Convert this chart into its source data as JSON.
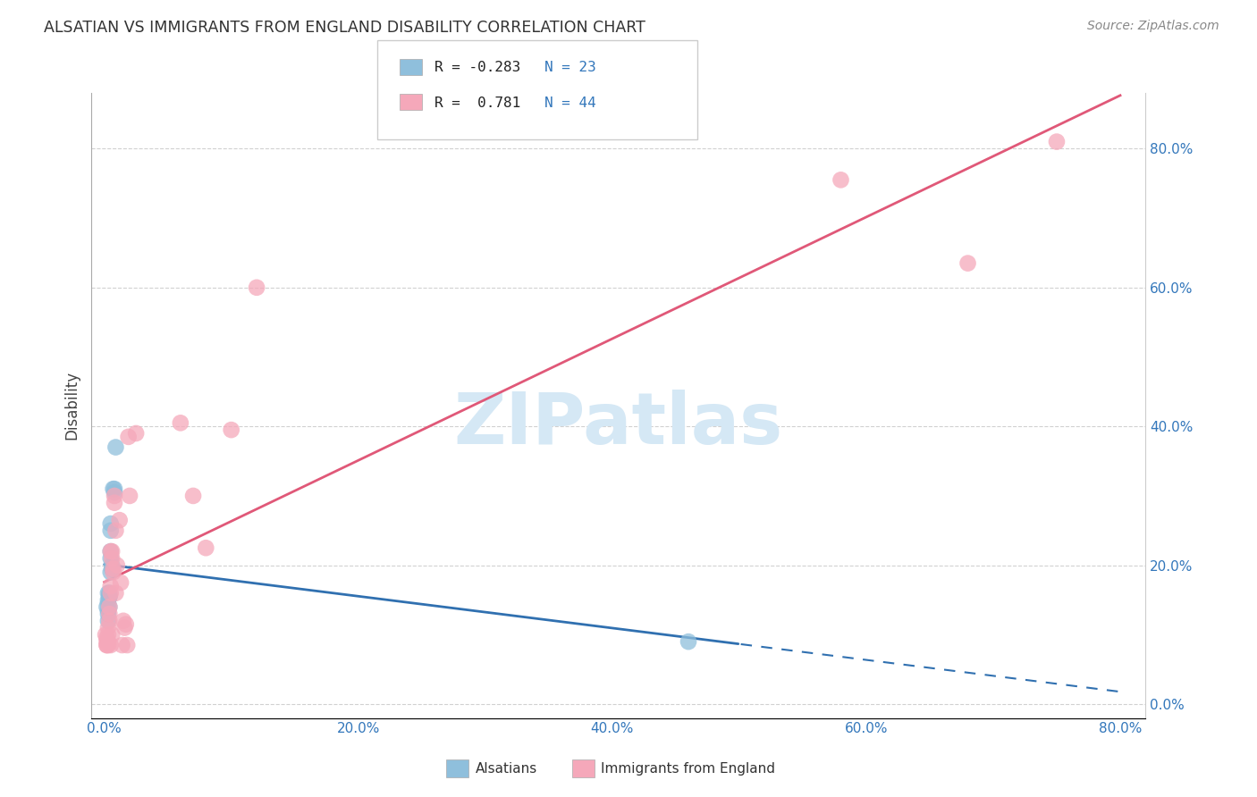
{
  "title": "ALSATIAN VS IMMIGRANTS FROM ENGLAND DISABILITY CORRELATION CHART",
  "source": "Source: ZipAtlas.com",
  "ylabel": "Disability",
  "xlim": [
    0,
    0.8
  ],
  "ylim": [
    0,
    0.88
  ],
  "x_ticks": [
    0.0,
    0.2,
    0.4,
    0.6,
    0.8
  ],
  "x_tick_labels": [
    "0.0%",
    "20.0%",
    "40.0%",
    "60.0%",
    "80.0%"
  ],
  "y_ticks": [
    0.0,
    0.2,
    0.4,
    0.6,
    0.8
  ],
  "y_tick_labels": [
    "0.0%",
    "20.0%",
    "40.0%",
    "60.0%",
    "80.0%"
  ],
  "blue_color": "#8fbfdc",
  "pink_color": "#f5a8ba",
  "blue_line_color": "#3070b0",
  "pink_line_color": "#e05878",
  "watermark": "ZIPatlas",
  "watermark_color": "#d5e8f5",
  "alsatians_x": [
    0.002,
    0.003,
    0.003,
    0.003,
    0.003,
    0.003,
    0.003,
    0.004,
    0.004,
    0.004,
    0.004,
    0.005,
    0.005,
    0.005,
    0.005,
    0.005,
    0.006,
    0.006,
    0.007,
    0.008,
    0.008,
    0.009,
    0.46
  ],
  "alsatians_y": [
    0.14,
    0.15,
    0.145,
    0.16,
    0.135,
    0.13,
    0.12,
    0.16,
    0.155,
    0.155,
    0.14,
    0.19,
    0.21,
    0.22,
    0.25,
    0.26,
    0.195,
    0.2,
    0.31,
    0.305,
    0.31,
    0.37,
    0.09
  ],
  "england_x": [
    0.001,
    0.002,
    0.002,
    0.002,
    0.002,
    0.003,
    0.003,
    0.003,
    0.003,
    0.004,
    0.004,
    0.004,
    0.005,
    0.005,
    0.005,
    0.005,
    0.006,
    0.006,
    0.006,
    0.007,
    0.007,
    0.008,
    0.008,
    0.009,
    0.009,
    0.01,
    0.012,
    0.013,
    0.014,
    0.015,
    0.016,
    0.017,
    0.018,
    0.019,
    0.02,
    0.025,
    0.06,
    0.07,
    0.08,
    0.1,
    0.12,
    0.58,
    0.68,
    0.75
  ],
  "england_y": [
    0.1,
    0.085,
    0.09,
    0.095,
    0.085,
    0.11,
    0.1,
    0.09,
    0.085,
    0.12,
    0.13,
    0.14,
    0.16,
    0.17,
    0.22,
    0.085,
    0.21,
    0.22,
    0.1,
    0.19,
    0.195,
    0.29,
    0.3,
    0.25,
    0.16,
    0.2,
    0.265,
    0.175,
    0.085,
    0.12,
    0.11,
    0.115,
    0.085,
    0.385,
    0.3,
    0.39,
    0.405,
    0.3,
    0.225,
    0.395,
    0.6,
    0.755,
    0.635,
    0.81
  ],
  "blue_trendline_x0": 0.0,
  "blue_trendline_x1": 0.8,
  "pink_trendline_x0": 0.0,
  "pink_trendline_x1": 0.8
}
